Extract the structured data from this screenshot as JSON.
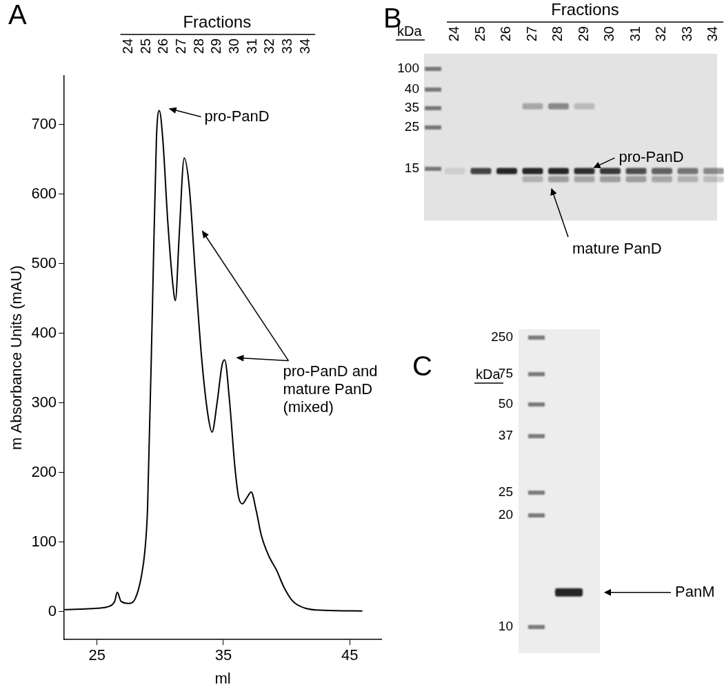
{
  "chart_data": {
    "type": "line",
    "panel": "A",
    "x_label": "ml",
    "y_label": "m Absorbance Units (mAU)",
    "x": [
      22.4,
      25,
      26,
      26.4,
      26.6,
      26.9,
      27.5,
      28,
      28.5,
      28.8,
      29.0,
      29.4,
      29.7,
      29.93,
      30.2,
      30.6,
      31.0,
      31.2,
      31.5,
      31.9,
      32.3,
      32.8,
      33.3,
      33.8,
      34.1,
      34.5,
      34.9,
      35.1,
      35.5,
      35.9,
      36.2,
      36.5,
      36.9,
      37.2,
      37.6,
      38.0,
      38.6,
      39.2,
      39.8,
      40.5,
      41.5,
      43,
      46
    ],
    "values": [
      3,
      5,
      8,
      15,
      28,
      15,
      12,
      18,
      50,
      90,
      150,
      450,
      680,
      720,
      680,
      560,
      470,
      447,
      540,
      652,
      610,
      480,
      360,
      280,
      258,
      300,
      355,
      362,
      300,
      210,
      165,
      155,
      165,
      172,
      145,
      110,
      80,
      60,
      35,
      15,
      5,
      2,
      1
    ],
    "color": "#000000",
    "xlim": [
      22.4,
      47.5
    ],
    "xticks": [
      25,
      35,
      45
    ],
    "ylim": [
      -40,
      770
    ],
    "yticks": [
      0,
      100,
      200,
      300,
      400,
      500,
      600,
      700
    ],
    "grid": false,
    "fractions": {
      "title": "Fractions",
      "labels": [
        "24",
        "25",
        "26",
        "27",
        "28",
        "29",
        "30",
        "31",
        "32",
        "33",
        "34"
      ],
      "x": [
        27.5,
        28.9,
        30.3,
        31.7,
        33.1,
        34.5,
        35.9,
        37.3,
        38.7,
        40.1,
        41.5
      ]
    },
    "annotations": [
      {
        "text": [
          "pro-PanD"
        ],
        "points": [
          [
            30.5,
            723
          ]
        ]
      },
      {
        "text": [
          "pro-PanD and",
          "mature PanD",
          "(mixed)"
        ],
        "points": [
          [
            33.3,
            548
          ],
          [
            36.0,
            365
          ]
        ]
      }
    ]
  },
  "gels": [
    {
      "panel": "B",
      "title": "Fractions",
      "unit": "kDa",
      "markers": [
        100,
        40,
        35,
        25,
        15
      ],
      "lanes": [
        "24",
        "25",
        "26",
        "27",
        "28",
        "29",
        "30",
        "31",
        "32",
        "33",
        "34"
      ],
      "bands": [
        {
          "name": "pro-PanD",
          "kda": 14.6,
          "intensity": [
            0.1,
            0.8,
            0.95,
            0.95,
            0.95,
            0.9,
            0.85,
            0.75,
            0.65,
            0.55,
            0.45
          ]
        },
        {
          "name": "mature PanD",
          "kda": 13.2,
          "intensity": [
            0,
            0,
            0,
            0.25,
            0.35,
            0.3,
            0.35,
            0.35,
            0.3,
            0.25,
            0.2
          ]
        },
        {
          "kda": 35.5,
          "intensity": [
            0,
            0,
            0,
            0.3,
            0.45,
            0.2,
            0,
            0,
            0,
            0,
            0
          ]
        }
      ]
    },
    {
      "panel": "C",
      "unit": "kDa",
      "markers": [
        250,
        75,
        50,
        37,
        25,
        20,
        10
      ],
      "lanes": [
        null
      ],
      "bands": [
        {
          "name": "PanM",
          "kda": 12.4,
          "intensity": [
            0.95
          ]
        }
      ]
    }
  ]
}
